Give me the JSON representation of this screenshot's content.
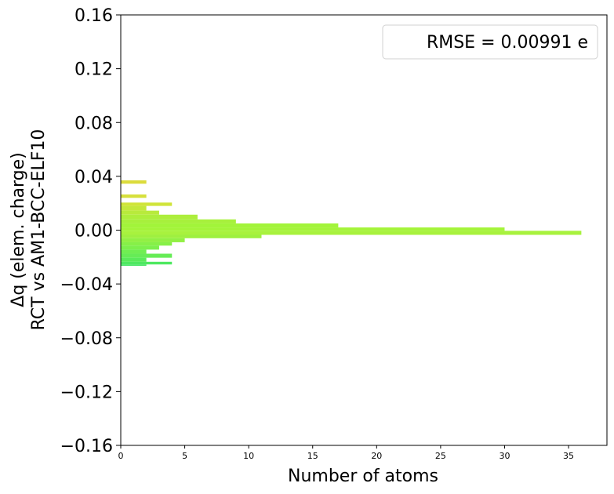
{
  "chart_data": {
    "type": "bar",
    "orientation": "horizontal-histogram",
    "xlabel": "Number of atoms",
    "ylabel_lines": [
      "Δq (elem. charge)",
      "RCT vs AM1-BCC-ELF10"
    ],
    "xlim": [
      0,
      38
    ],
    "ylim": [
      -0.16,
      0.16
    ],
    "x_ticks": [
      "0",
      "5",
      "10",
      "15",
      "20",
      "25",
      "30",
      "35"
    ],
    "y_ticks": [
      "−0.16",
      "−0.12",
      "−0.08",
      "−0.04",
      "0.00",
      "0.04",
      "0.08",
      "0.12",
      "0.16"
    ],
    "legend": {
      "text": "RMSE = 0.00991 e",
      "placement": "upper right"
    },
    "bins": [
      {
        "y0": 0.0345,
        "y1": 0.037,
        "count": 2,
        "color": "#dcdc3c"
      },
      {
        "y0": 0.024,
        "y1": 0.0265,
        "count": 2,
        "color": "#d6e03c"
      },
      {
        "y0": 0.018,
        "y1": 0.0205,
        "count": 4,
        "color": "#d0e43a"
      },
      {
        "y0": 0.0145,
        "y1": 0.018,
        "count": 2,
        "color": "#c4e83c"
      },
      {
        "y0": 0.0115,
        "y1": 0.0145,
        "count": 3,
        "color": "#b8ea3c"
      },
      {
        "y0": 0.008,
        "y1": 0.0115,
        "count": 6,
        "color": "#adee3c"
      },
      {
        "y0": 0.005,
        "y1": 0.008,
        "count": 9,
        "color": "#a7f03c"
      },
      {
        "y0": 0.002,
        "y1": 0.005,
        "count": 17,
        "color": "#a2f43a"
      },
      {
        "y0": -0.0005,
        "y1": 0.002,
        "count": 30,
        "color": "#a4f43a"
      },
      {
        "y0": -0.0035,
        "y1": -0.0005,
        "count": 36,
        "color": "#a8f23e"
      },
      {
        "y0": -0.006,
        "y1": -0.0035,
        "count": 11,
        "color": "#9ef040"
      },
      {
        "y0": -0.009,
        "y1": -0.006,
        "count": 5,
        "color": "#92f044"
      },
      {
        "y0": -0.0115,
        "y1": -0.009,
        "count": 4,
        "color": "#86f048"
      },
      {
        "y0": -0.0145,
        "y1": -0.0115,
        "count": 3,
        "color": "#7cf04c"
      },
      {
        "y0": -0.0175,
        "y1": -0.0145,
        "count": 2,
        "color": "#70ee52"
      },
      {
        "y0": -0.0205,
        "y1": -0.0175,
        "count": 4,
        "color": "#66ec56"
      },
      {
        "y0": -0.0235,
        "y1": -0.0205,
        "count": 2,
        "color": "#5aea5a"
      },
      {
        "y0": -0.0255,
        "y1": -0.0235,
        "count": 4,
        "color": "#4ee860"
      },
      {
        "y0": -0.0265,
        "y1": -0.0255,
        "count": 2,
        "color": "#46e664"
      }
    ]
  }
}
